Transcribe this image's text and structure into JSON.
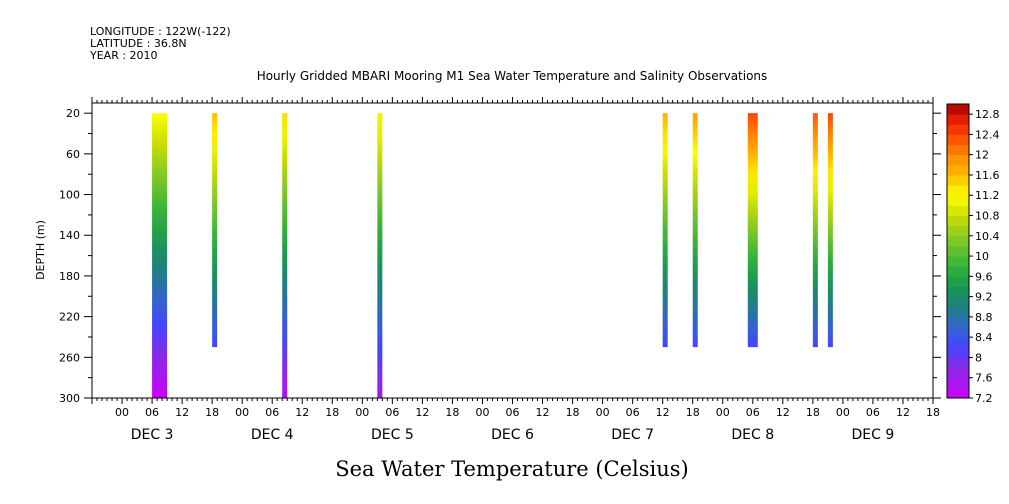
{
  "header": {
    "longitude": "LONGITUDE : 122W(-122)",
    "latitude": "LATITUDE : 36.8N",
    "year": "YEAR : 2010"
  },
  "chart_data": {
    "type": "heatmap",
    "title": "Hourly Gridded MBARI Mooring M1 Sea Water Temperature and Salinity Observations",
    "xlabel": "",
    "ylabel": "DEPTH (m)",
    "colorbar_label": "Sea Water Temperature (Celsius)",
    "x_hour_ticks": [
      "00",
      "06",
      "12",
      "18",
      "00",
      "06",
      "12",
      "18",
      "00",
      "06",
      "12",
      "18",
      "00",
      "06",
      "12",
      "18",
      "00",
      "06",
      "12",
      "18",
      "00",
      "06",
      "12",
      "18",
      "00",
      "06",
      "12",
      "18"
    ],
    "x_day_labels": [
      "DEC 3",
      "DEC 4",
      "DEC 5",
      "DEC 6",
      "DEC 7",
      "DEC 8",
      "DEC 9"
    ],
    "y_ticks": [
      20,
      60,
      100,
      140,
      180,
      220,
      260,
      300
    ],
    "ylim": [
      300,
      10
    ],
    "xlim_hours": [
      -6,
      162
    ],
    "colorbar": {
      "min": 7.2,
      "max": 13.0,
      "step": 0.2,
      "tick_labels": [
        "12.8",
        "12.4",
        "12",
        "11.6",
        "11.2",
        "10.8",
        "10.4",
        "10",
        "9.6",
        "9.2",
        "8.8",
        "8.4",
        "8",
        "7.6",
        "7.2"
      ],
      "stops": [
        [
          7.2,
          "#cc00ff"
        ],
        [
          7.8,
          "#8a2be2"
        ],
        [
          8.2,
          "#4444ff"
        ],
        [
          8.6,
          "#3366cc"
        ],
        [
          9.0,
          "#1e7f7f"
        ],
        [
          9.4,
          "#189a50"
        ],
        [
          9.8,
          "#33b13a"
        ],
        [
          10.4,
          "#8ccc22"
        ],
        [
          10.8,
          "#ccdd00"
        ],
        [
          11.2,
          "#ffff00"
        ],
        [
          11.6,
          "#ffbb00"
        ],
        [
          12.0,
          "#ff8800"
        ],
        [
          12.4,
          "#ff4400"
        ],
        [
          12.8,
          "#dd1100"
        ],
        [
          13.0,
          "#990000"
        ]
      ]
    },
    "series": [
      {
        "start_hour": 6,
        "end_hour": 9,
        "depth_max": 300,
        "temp_top": 11.2,
        "temp_bottom": 7.2
      },
      {
        "start_hour": 18,
        "end_hour": 19,
        "depth_max": 250,
        "temp_top": 11.6,
        "temp_bottom": 8.2
      },
      {
        "start_hour": 32,
        "end_hour": 33,
        "depth_max": 300,
        "temp_top": 11.4,
        "temp_bottom": 7.4
      },
      {
        "start_hour": 51,
        "end_hour": 52,
        "depth_max": 300,
        "temp_top": 11.3,
        "temp_bottom": 7.6
      },
      {
        "start_hour": 108,
        "end_hour": 109,
        "depth_max": 250,
        "temp_top": 11.7,
        "temp_bottom": 8.2
      },
      {
        "start_hour": 114,
        "end_hour": 115,
        "depth_max": 250,
        "temp_top": 11.8,
        "temp_bottom": 8.2
      },
      {
        "start_hour": 125,
        "end_hour": 127,
        "depth_max": 250,
        "temp_top": 12.4,
        "temp_bottom": 8.2
      },
      {
        "start_hour": 138,
        "end_hour": 139,
        "depth_max": 250,
        "temp_top": 12.3,
        "temp_bottom": 8.2
      },
      {
        "start_hour": 141,
        "end_hour": 142,
        "depth_max": 250,
        "temp_top": 12.4,
        "temp_bottom": 8.2
      }
    ]
  }
}
